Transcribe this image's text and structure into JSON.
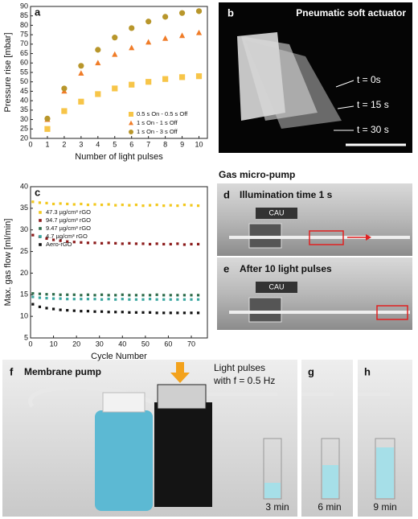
{
  "chart_data": [
    {
      "type": "scatter",
      "panel": "a",
      "x_label": "Number of light pulses",
      "y_label": "Pressure rise [mbar]",
      "x": [
        1,
        2,
        3,
        4,
        5,
        6,
        7,
        8,
        9,
        10
      ],
      "xlim": [
        0,
        10.5
      ],
      "xticks": [
        0,
        1,
        2,
        3,
        4,
        5,
        6,
        7,
        8,
        9,
        10
      ],
      "ylim": [
        20,
        90
      ],
      "yticks": [
        20,
        25,
        30,
        35,
        40,
        45,
        50,
        55,
        60,
        65,
        70,
        75,
        80,
        85,
        90
      ],
      "legend": "lower right",
      "series": [
        {
          "name": "0.5 s On - 0.5 s Off",
          "color": "#f7c548",
          "marker": "square",
          "values": [
            25,
            34.5,
            39.5,
            43.5,
            46.5,
            48.5,
            50,
            51.5,
            52.5,
            53
          ]
        },
        {
          "name": "1 s On - 1 s Off",
          "color": "#f07c28",
          "marker": "triangle",
          "values": [
            30,
            45,
            54.5,
            60,
            64.5,
            68,
            71,
            73,
            74.5,
            76
          ]
        },
        {
          "name": "1 s On - 3 s Off",
          "color": "#b8962b",
          "marker": "circle",
          "values": [
            30.5,
            46.5,
            58.5,
            67,
            73.5,
            78.5,
            82,
            84.5,
            86.5,
            87.5
          ]
        }
      ]
    },
    {
      "type": "scatter",
      "panel": "c",
      "x_label": "Cycle Number",
      "y_label": "Max. gas flow [ml/min]",
      "x": [
        1,
        4,
        7,
        10,
        13,
        16,
        19,
        22,
        25,
        28,
        31,
        34,
        37,
        40,
        43,
        46,
        49,
        52,
        55,
        58,
        61,
        64,
        67,
        70,
        73
      ],
      "xlim": [
        0,
        77
      ],
      "xticks": [
        0,
        10,
        20,
        30,
        40,
        50,
        60,
        70
      ],
      "ylim": [
        5,
        40
      ],
      "yticks": [
        5,
        10,
        15,
        20,
        25,
        30,
        35,
        40
      ],
      "legend": "center left",
      "series": [
        {
          "name": "47.3 µg/cm³ rGO",
          "color": "#f2c81e",
          "marker": "square",
          "values": [
            36.5,
            36.3,
            36.2,
            36.0,
            36.1,
            36.0,
            35.9,
            36.0,
            35.8,
            35.9,
            35.8,
            35.9,
            35.7,
            35.8,
            35.7,
            35.8,
            35.6,
            35.7,
            35.8,
            35.6,
            35.7,
            35.6,
            35.8,
            35.7,
            35.6
          ]
        },
        {
          "name": "94.7 µg/cm³ rGO",
          "color": "#8b1a1a",
          "marker": "square",
          "values": [
            28.8,
            28.4,
            28.0,
            27.7,
            27.5,
            27.3,
            27.2,
            27.1,
            27.0,
            27.0,
            26.9,
            27.0,
            26.9,
            26.8,
            26.9,
            26.8,
            26.8,
            26.7,
            26.8,
            26.7,
            26.7,
            26.8,
            26.6,
            26.7,
            26.7
          ]
        },
        {
          "name": "9.47 µg/cm³ rGO",
          "color": "#2e6b4a",
          "marker": "square",
          "values": [
            15.3,
            15.2,
            15.1,
            15.1,
            15.0,
            15.0,
            15.0,
            14.9,
            15.0,
            14.9,
            15.0,
            14.9,
            14.9,
            15.0,
            14.9,
            14.9,
            14.9,
            14.9,
            15.0,
            14.9,
            14.9,
            14.9,
            14.9,
            14.9,
            14.9
          ]
        },
        {
          "name": "4.7 µg/cm³ rGO",
          "color": "#3aa7a0",
          "marker": "square",
          "values": [
            14.5,
            14.3,
            14.2,
            14.1,
            14.1,
            14.0,
            14.0,
            14.0,
            14.0,
            14.0,
            13.9,
            14.0,
            13.9,
            14.0,
            13.9,
            13.9,
            13.9,
            14.0,
            13.9,
            13.9,
            13.9,
            13.9,
            13.9,
            13.9,
            13.9
          ]
        },
        {
          "name": "Aero-rGO",
          "color": "#111111",
          "marker": "square",
          "values": [
            12.8,
            12.2,
            11.9,
            11.7,
            11.5,
            11.4,
            11.3,
            11.2,
            11.2,
            11.1,
            11.1,
            11.0,
            11.0,
            11.0,
            10.9,
            10.9,
            10.9,
            10.9,
            10.8,
            10.8,
            10.8,
            10.8,
            10.8,
            10.8,
            10.8
          ]
        }
      ]
    }
  ],
  "panels": {
    "b": {
      "label": "b",
      "title": "Pneumatic soft actuator",
      "times": [
        "t = 0s",
        "t = 15 s",
        "t = 30 s"
      ]
    },
    "section_title": "Gas micro-pump",
    "d": {
      "label": "d",
      "title": "Illumination time 1 s",
      "logo": "CAU"
    },
    "e": {
      "label": "e",
      "title": "After 10 light pulses",
      "logo": "CAU"
    },
    "f": {
      "label": "f",
      "title": "Membrane pump",
      "note": [
        "Light pulses",
        "with f = 0.5 Hz"
      ],
      "time": "3 min"
    },
    "g": {
      "label": "g",
      "time": "6 min"
    },
    "h": {
      "label": "h",
      "time": "9 min"
    }
  }
}
